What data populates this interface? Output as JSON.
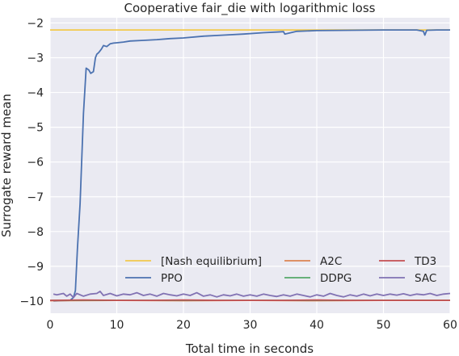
{
  "chart_data": {
    "type": "line",
    "title": "Cooperative fair_die with logarithmic loss",
    "xlabel": "Total time in seconds",
    "ylabel": "Surrogate reward mean",
    "xlim": [
      0,
      60
    ],
    "ylim": [
      -10.35,
      -1.85
    ],
    "xticks": [
      0,
      10,
      20,
      30,
      40,
      50,
      60
    ],
    "yticks": [
      -10,
      -9,
      -8,
      -7,
      -6,
      -5,
      -4,
      -3,
      -2
    ],
    "grid": true,
    "legend_position": "lower-right",
    "legend_columns": 3,
    "background": "#eaeaf2",
    "series": [
      {
        "name": "[Nash equilibrium]",
        "color": "#f2c94c",
        "x": [
          0,
          60
        ],
        "y": [
          -2.2,
          -2.2
        ]
      },
      {
        "name": "PPO",
        "color": "#4c72b0",
        "x": [
          0.5,
          3.0,
          3.5,
          3.8,
          4.1,
          4.5,
          5.0,
          5.4,
          5.8,
          6.1,
          6.5,
          6.8,
          7.0,
          7.3,
          7.7,
          8.0,
          8.5,
          9.0,
          9.5,
          10.0,
          11,
          12,
          14,
          16,
          18,
          20,
          23,
          26,
          29,
          32,
          34,
          35.0,
          35.2,
          37,
          40,
          45,
          50,
          55,
          56.0,
          56.2,
          56.5,
          58,
          60
        ],
        "y": [
          -10.0,
          -9.98,
          -9.9,
          -9.7,
          -8.5,
          -7.2,
          -4.6,
          -3.3,
          -3.35,
          -3.45,
          -3.4,
          -3.0,
          -2.9,
          -2.85,
          -2.75,
          -2.65,
          -2.68,
          -2.6,
          -2.58,
          -2.57,
          -2.55,
          -2.52,
          -2.5,
          -2.48,
          -2.45,
          -2.43,
          -2.38,
          -2.35,
          -2.32,
          -2.28,
          -2.26,
          -2.25,
          -2.32,
          -2.24,
          -2.22,
          -2.21,
          -2.2,
          -2.2,
          -2.24,
          -2.35,
          -2.21,
          -2.2,
          -2.2
        ]
      },
      {
        "name": "A2C",
        "color": "#dd8452",
        "x": [
          0,
          10,
          20,
          30,
          40,
          50,
          60
        ],
        "y": [
          -9.99,
          -9.98,
          -9.99,
          -9.98,
          -9.99,
          -9.98,
          -9.98
        ]
      },
      {
        "name": "DDPG",
        "color": "#55a868",
        "x": [
          0,
          10,
          20,
          30,
          40,
          50,
          60
        ],
        "y": [
          -9.98,
          -9.98,
          -9.98,
          -9.98,
          -9.98,
          -9.98,
          -9.98
        ]
      },
      {
        "name": "TD3",
        "color": "#c44e52",
        "x": [
          0,
          5,
          10,
          15,
          20,
          25,
          30,
          35,
          40,
          45,
          50,
          55,
          60
        ],
        "y": [
          -9.98,
          -9.97,
          -9.98,
          -9.98,
          -9.97,
          -9.98,
          -9.98,
          -9.98,
          -9.97,
          -9.98,
          -9.98,
          -9.98,
          -9.98
        ]
      },
      {
        "name": "SAC",
        "color": "#8172b3",
        "x": [
          0.5,
          1,
          2,
          2.5,
          3,
          3.5,
          4,
          5,
          6,
          7,
          7.5,
          8,
          9,
          10,
          11,
          12,
          13,
          14,
          15,
          16,
          17,
          18,
          19,
          20,
          21,
          22,
          23,
          24,
          25,
          26,
          27,
          28,
          29,
          30,
          31,
          32,
          33,
          34,
          35,
          36,
          37,
          38,
          39,
          40,
          41,
          42,
          43,
          44,
          45,
          46,
          47,
          48,
          49,
          50,
          51,
          52,
          53,
          54,
          55,
          56,
          57,
          58,
          59,
          60
        ],
        "y": [
          -9.8,
          -9.82,
          -9.78,
          -9.86,
          -9.8,
          -9.9,
          -9.78,
          -9.86,
          -9.8,
          -9.78,
          -9.72,
          -9.84,
          -9.78,
          -9.85,
          -9.8,
          -9.82,
          -9.76,
          -9.84,
          -9.8,
          -9.86,
          -9.78,
          -9.82,
          -9.85,
          -9.8,
          -9.84,
          -9.76,
          -9.86,
          -9.82,
          -9.88,
          -9.82,
          -9.85,
          -9.8,
          -9.86,
          -9.82,
          -9.86,
          -9.8,
          -9.84,
          -9.87,
          -9.82,
          -9.86,
          -9.8,
          -9.84,
          -9.88,
          -9.82,
          -9.86,
          -9.78,
          -9.84,
          -9.88,
          -9.82,
          -9.86,
          -9.8,
          -9.85,
          -9.8,
          -9.84,
          -9.8,
          -9.83,
          -9.79,
          -9.84,
          -9.8,
          -9.82,
          -9.78,
          -9.84,
          -9.8,
          -9.78
        ]
      }
    ],
    "legend_order": [
      "[Nash equilibrium]",
      "A2C",
      "TD3",
      "PPO",
      "DDPG",
      "SAC"
    ]
  }
}
